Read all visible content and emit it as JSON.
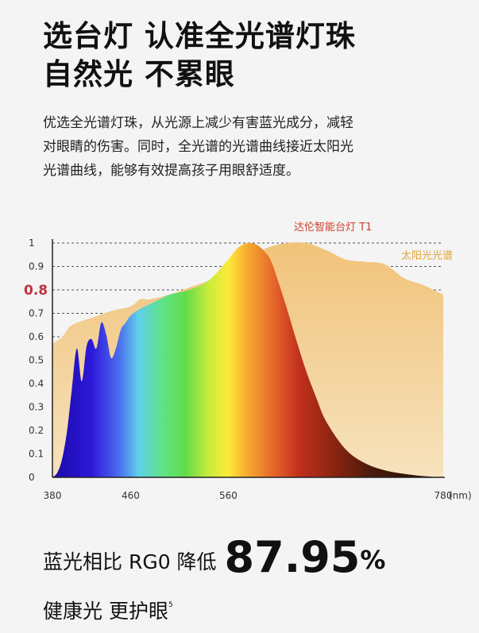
{
  "headline": {
    "line1": "选台灯 认准全光谱灯珠",
    "line2": "自然光 不累眼"
  },
  "description": {
    "line1": "优选全光谱灯珠，从光源上减少有害蓝光成分，减轻",
    "line2": "对眼睛的伤害。同时，全光谱的光谱曲线接近太阳光",
    "line3": "光谱曲线，能够有效提高孩子用眼舒适度。"
  },
  "chart_data": {
    "type": "area",
    "xlabel": "(nm)",
    "ylabel": "",
    "xlim": [
      380,
      780
    ],
    "ylim": [
      0,
      1
    ],
    "y_ticks": [
      "0",
      "0.1",
      "0.2",
      "0.3",
      "0.4",
      "0.5",
      "0.6",
      "0.7",
      "0.8",
      "0.9",
      "1"
    ],
    "highlight_tick": "0.8",
    "x_ticks": [
      "380",
      "460",
      "560",
      "780"
    ],
    "grid": true,
    "series": [
      {
        "name": "太阳光光谱",
        "color": "#f0c986",
        "x": [
          380,
          390,
          400,
          420,
          440,
          460,
          470,
          480,
          500,
          520,
          540,
          560,
          570,
          580,
          590,
          600,
          620,
          640,
          660,
          680,
          700,
          720,
          740,
          760,
          780
        ],
        "values": [
          0.57,
          0.6,
          0.65,
          0.68,
          0.71,
          0.73,
          0.76,
          0.76,
          0.78,
          0.81,
          0.84,
          0.89,
          0.91,
          0.93,
          0.95,
          0.98,
          1.0,
          1.0,
          0.97,
          0.93,
          0.92,
          0.91,
          0.85,
          0.82,
          0.78
        ]
      },
      {
        "name": "达伦智能台灯 T1",
        "color": "#d0402a",
        "x": [
          380,
          385,
          390,
          395,
          400,
          405,
          410,
          415,
          420,
          425,
          430,
          435,
          440,
          445,
          450,
          455,
          460,
          470,
          480,
          490,
          500,
          520,
          540,
          560,
          570,
          580,
          590,
          600,
          605,
          610,
          620,
          630,
          640,
          650,
          660,
          680,
          700,
          720,
          740,
          760,
          780
        ],
        "values": [
          0,
          0.02,
          0.08,
          0.2,
          0.38,
          0.55,
          0.41,
          0.56,
          0.59,
          0.55,
          0.66,
          0.61,
          0.51,
          0.55,
          0.63,
          0.66,
          0.69,
          0.72,
          0.74,
          0.76,
          0.78,
          0.8,
          0.84,
          0.93,
          0.98,
          1.0,
          0.99,
          0.95,
          0.91,
          0.85,
          0.72,
          0.58,
          0.45,
          0.34,
          0.24,
          0.12,
          0.06,
          0.03,
          0.015,
          0.005,
          0
        ]
      }
    ]
  },
  "summary": {
    "prefix": "蓝光相比 RG0 降低",
    "value": "87.95",
    "unit": "%",
    "line2": "健康光 更护眼",
    "footnote": "5"
  }
}
